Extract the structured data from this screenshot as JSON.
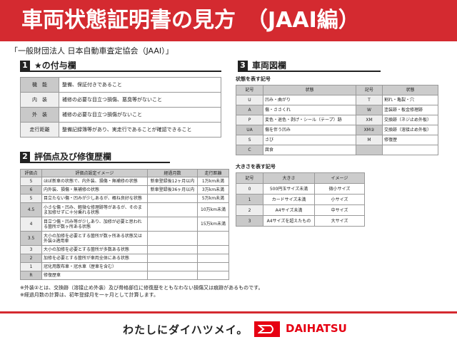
{
  "header": {
    "title": "車両状態証明書の見方　（JAAI編）"
  },
  "subtitle": "「一般財団法人 日本自動車査定協会（JAAI）」",
  "section1": {
    "num": "1",
    "title": "★の付与欄",
    "rows": [
      {
        "k": "機　能",
        "v": "整備、保証付きであること"
      },
      {
        "k": "内　装",
        "v": "補修の必要な目立つ損傷、悪臭等がないこと"
      },
      {
        "k": "外　装",
        "v": "補修の必要な目立つ損傷がないこと"
      },
      {
        "k": "走行距離",
        "v": "整備記録簿等があり、実走行であることが確認できること"
      }
    ]
  },
  "section2": {
    "num": "2",
    "title": "評価点及び修復歴欄",
    "headers": [
      "評価点",
      "評価点設定イメージ",
      "経過月数",
      "走行距離"
    ],
    "rows": [
      [
        "5",
        "ほぼ新車の状態で、内外装、損傷・無補修の状態",
        "新車登録後12ヶ月以内",
        "1万km未満"
      ],
      [
        "6",
        "内外装、損傷・無補修の状態",
        "新車登録後36ヶ月以内",
        "3万km未満"
      ],
      [
        "5",
        "目立たない傷・凹みが少しあるが、概ね良好な状態",
        "",
        "5万km未満"
      ],
      [
        "4.5",
        "小さな傷・凹み、軽微な修理跡等があるが、そのまま加修せずに十分乗れる状態",
        "",
        "10万km未満"
      ],
      [
        "4",
        "目立つ傷・凹み等が少しあり、加修が必要と思われる箇所が数ヶ所ある状態",
        "",
        "15万km未満"
      ],
      [
        "3.5",
        "大小の加修を必要とする箇所が数ヶ所ある状態又は外装②適用車",
        "",
        ""
      ],
      [
        "3",
        "大小の加修を必要とする箇所が多数ある状態",
        "",
        ""
      ],
      [
        "2",
        "加修を必要とする箇所が車両全体にある状態",
        "",
        ""
      ],
      [
        "1",
        "冠化用散布車・冠水車（歴車を含む）",
        "",
        ""
      ],
      [
        "R",
        "修復歴車",
        "",
        ""
      ]
    ]
  },
  "notes": [
    "※外装②とは、交換跡（溶接止め外装）及び骨格部位に修復歴をともなわない損傷又は痕跡があるものです。",
    "※経過月数の計算は、初年登録月を一ヶ月として計算します。"
  ],
  "section3": {
    "num": "3",
    "title": "車両図欄",
    "state_label": "状態を表す記号",
    "state_headers": [
      "記号",
      "状態",
      "記号",
      "状態"
    ],
    "state_rows": [
      [
        "U",
        "凹み・曲がり",
        "T",
        "割れ・亀裂・穴"
      ],
      [
        "A",
        "傷・ささくれ",
        "W",
        "塗装跡・板金修理跡"
      ],
      [
        "P",
        "変色・退色・剥げ・シール（テープ）跡",
        "XM",
        "交換跡（ネジ止め外板）"
      ],
      [
        "UA",
        "傷を伴う凹み",
        "XM②",
        "交換跡（溶接止め外板）"
      ],
      [
        "S",
        "さび",
        "M",
        "修復歴"
      ],
      [
        "C",
        "腐食",
        "",
        ""
      ]
    ],
    "size_label": "大きさを表す記号",
    "size_headers": [
      "記号",
      "大きさ",
      "イメージ"
    ],
    "size_rows": [
      [
        "0",
        "500円玉サイズ未満",
        "微小サイズ"
      ],
      [
        "1",
        "カードサイズ未満",
        "小サイズ"
      ],
      [
        "2",
        "A4サイズ未満",
        "中サイズ"
      ],
      [
        "3",
        "A4サイズを超えたもの",
        "大サイズ"
      ]
    ]
  },
  "footer": {
    "slogan": "わたしにダイハツメイ。",
    "brand": "DAIHATSU",
    "accent": "#d42a30"
  }
}
